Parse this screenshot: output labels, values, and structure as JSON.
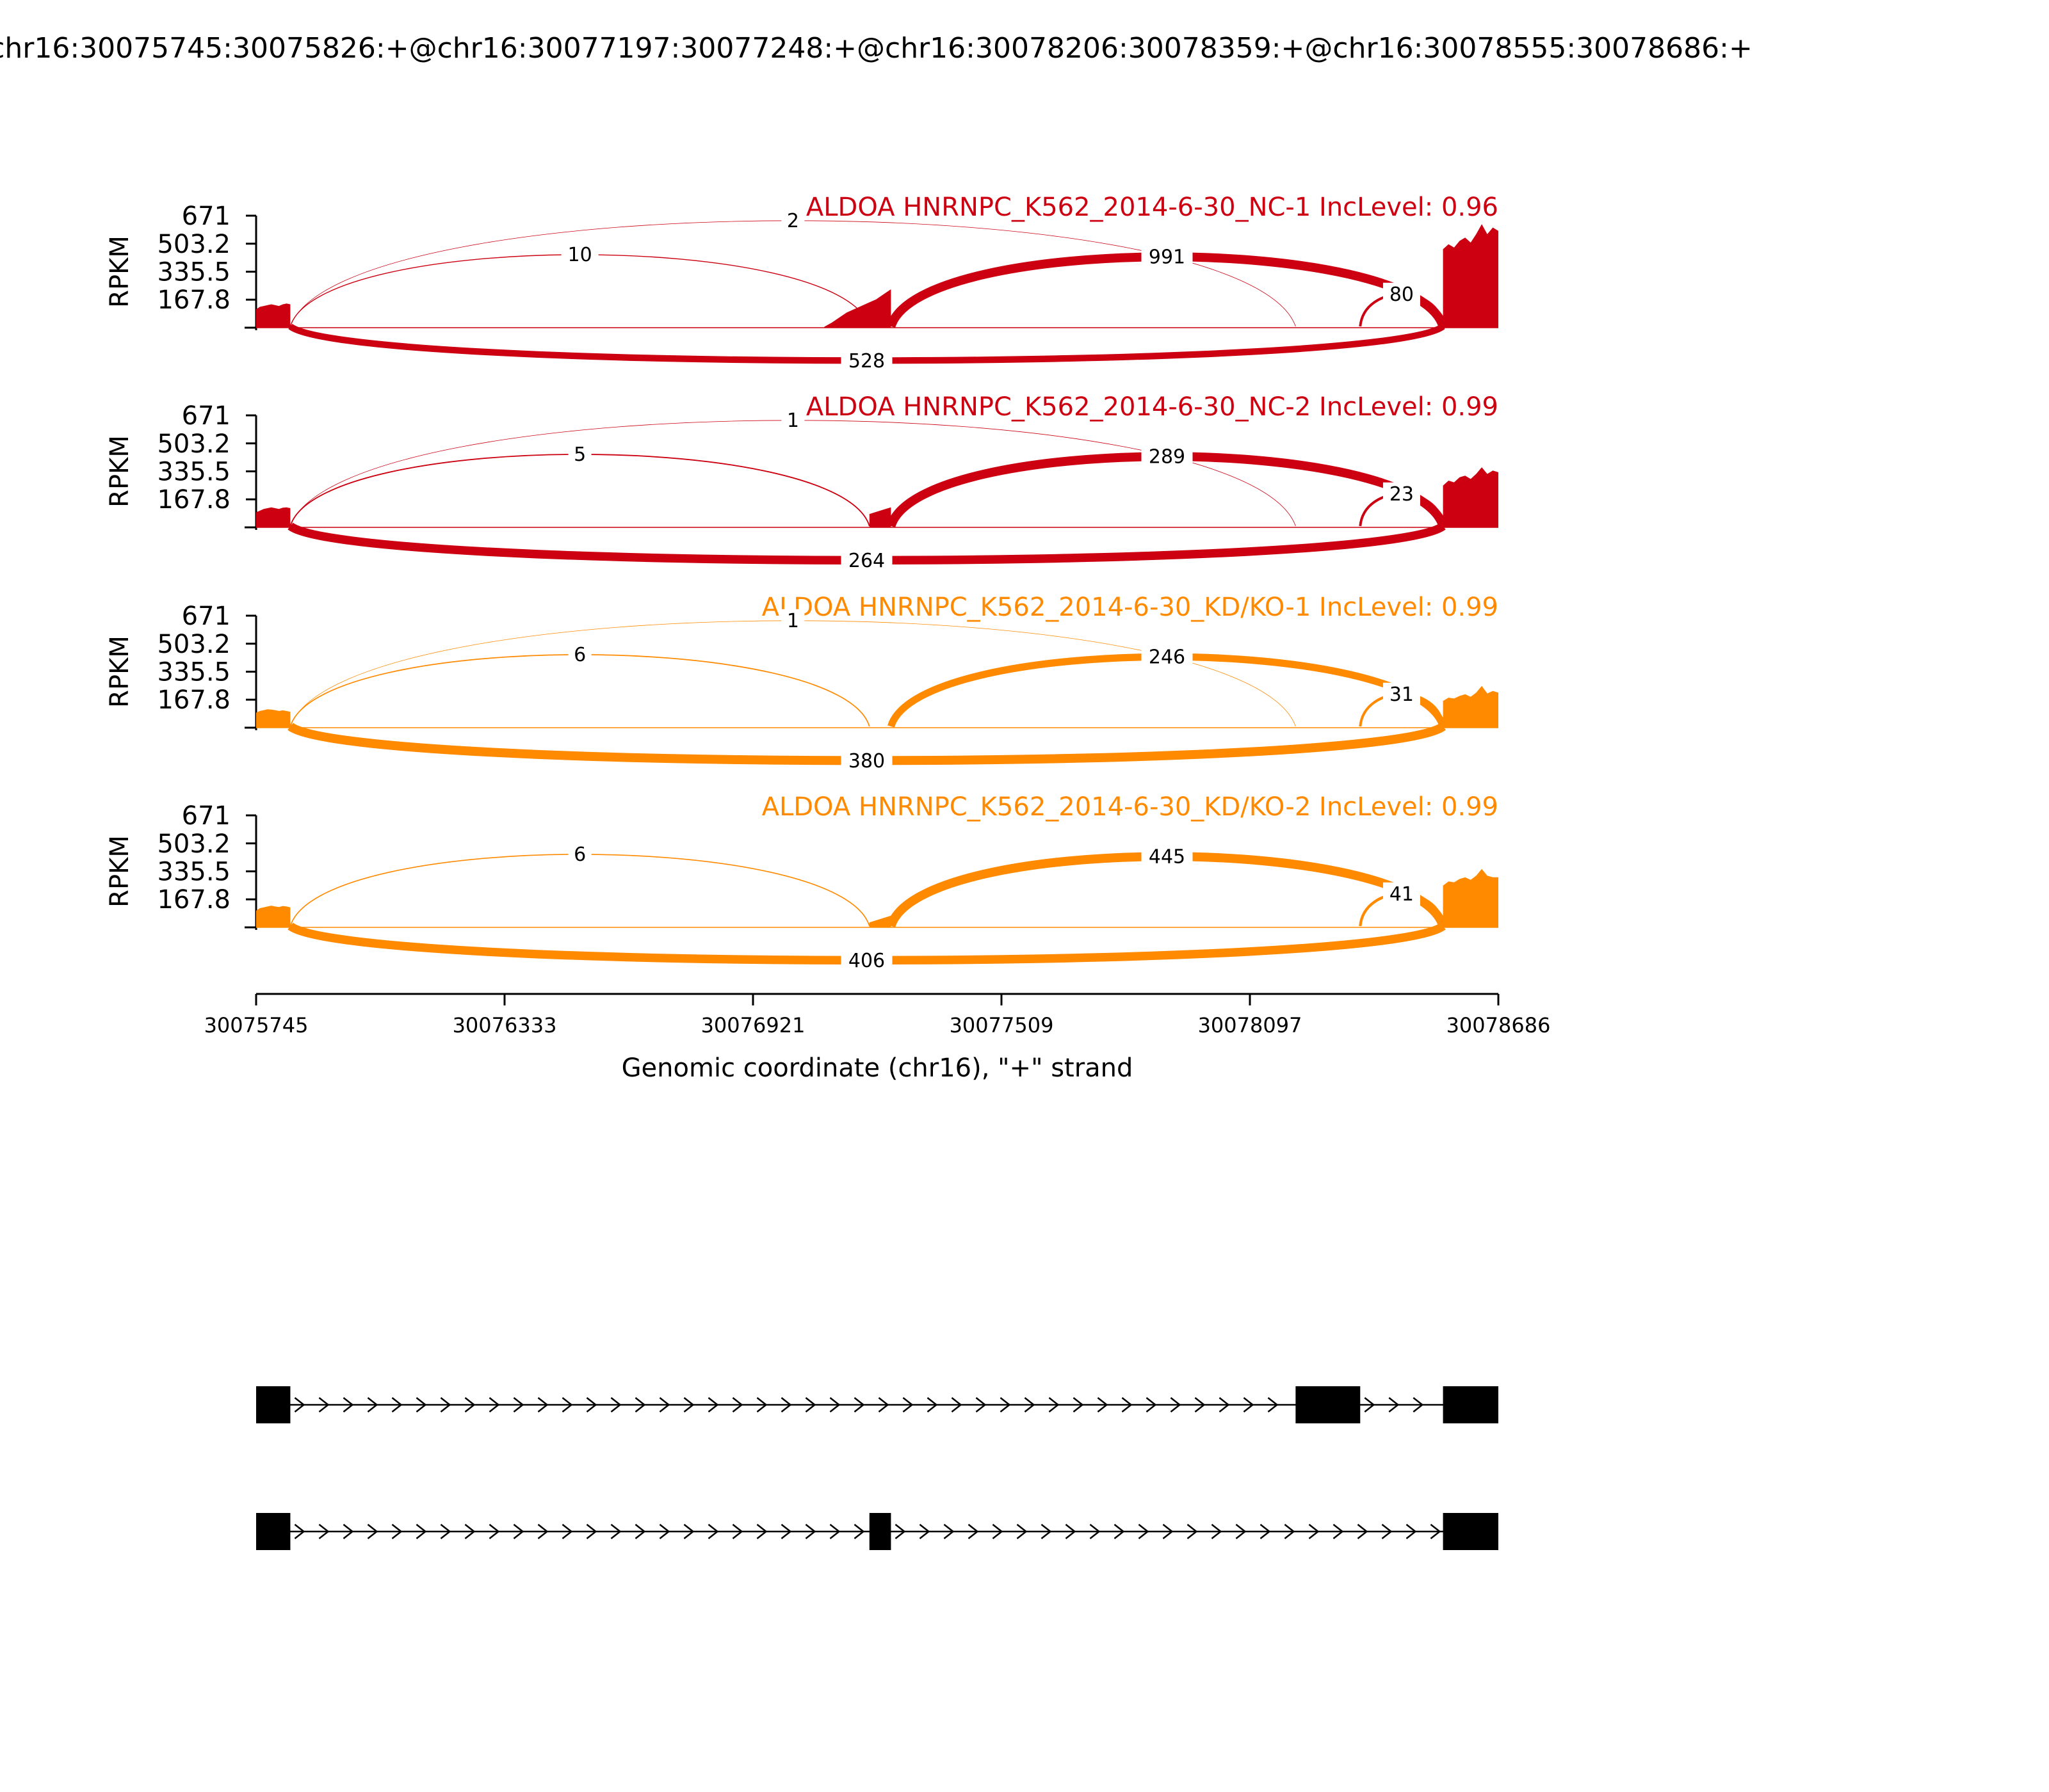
{
  "figure": {
    "title": "chr16:30075745:30075826:+@chr16:30077197:30077248:+@chr16:30078206:30078359:+@chr16:30078555:30078686:+",
    "ylabel": "RPKM",
    "xlabel": "Genomic coordinate (chr16), \"+\" strand",
    "yticks": [
      "671",
      "503.2",
      "335.5",
      "167.8"
    ],
    "xticks": [
      "30075745",
      "30076333",
      "30076921",
      "30077509",
      "30078097",
      "30078686"
    ]
  },
  "chart_data": {
    "type": "area",
    "chromosome": "chr16",
    "strand": "+",
    "ylabel": "RPKM",
    "xlabel": "Genomic coordinate (chr16), \"+\" strand",
    "xlim": [
      30075745,
      30078686
    ],
    "ylim": [
      0,
      671
    ],
    "yticks": [
      167.8,
      335.5,
      503.2,
      671
    ],
    "exons": [
      {
        "start": 30075745,
        "end": 30075826
      },
      {
        "start": 30077197,
        "end": 30077248
      },
      {
        "start": 30078206,
        "end": 30078359
      },
      {
        "start": 30078555,
        "end": 30078686
      }
    ],
    "series": [
      {
        "name": "ALDOA HNRNPC_K562_2014-6-30_NC-1 IncLevel: 0.96",
        "label": "ALDOA HNRNPC_K562_2014-6-30_NC-1 IncLevel: 0.96",
        "color": "#cc0011",
        "coverage": [
          {
            "start": 30075745,
            "end": 30075826,
            "values": [
              110,
              125,
              130,
              135,
              140,
              135,
              130,
              140,
              145,
              140
            ]
          },
          {
            "start": 30077090,
            "end": 30077248,
            "values": [
              5,
              30,
              60,
              90,
              110,
              130,
              150,
              170,
              200,
              230
            ]
          },
          {
            "start": 30078555,
            "end": 30078686,
            "values": [
              470,
              500,
              480,
              520,
              540,
              510,
              560,
              620,
              560,
              600,
              580
            ]
          }
        ],
        "junctions": [
          {
            "from": 30075826,
            "to": 30078206,
            "count": 2,
            "side": "above"
          },
          {
            "from": 30075826,
            "to": 30077197,
            "count": 10,
            "side": "above"
          },
          {
            "from": 30077248,
            "to": 30078555,
            "count": 991,
            "side": "above"
          },
          {
            "from": 30078359,
            "to": 30078555,
            "count": 80,
            "side": "above"
          },
          {
            "from": 30075826,
            "to": 30078555,
            "count": 528,
            "side": "below"
          }
        ]
      },
      {
        "name": "ALDOA HNRNPC_K562_2014-6-30_NC-2 IncLevel: 0.99",
        "label": "ALDOA HNRNPC_K562_2014-6-30_NC-2 IncLevel: 0.99",
        "color": "#cc0011",
        "coverage": [
          {
            "start": 30075745,
            "end": 30075826,
            "values": [
              90,
              100,
              110,
              115,
              120,
              115,
              110,
              118,
              120,
              115
            ]
          },
          {
            "start": 30077197,
            "end": 30077248,
            "values": [
              80,
              90,
              100,
              110,
              120
            ]
          },
          {
            "start": 30078555,
            "end": 30078686,
            "values": [
              250,
              280,
              270,
              300,
              310,
              290,
              320,
              360,
              320,
              340,
              330
            ]
          }
        ],
        "junctions": [
          {
            "from": 30075826,
            "to": 30078206,
            "count": 1,
            "side": "above"
          },
          {
            "from": 30075826,
            "to": 30077197,
            "count": 5,
            "side": "above"
          },
          {
            "from": 30077248,
            "to": 30078555,
            "count": 289,
            "side": "above"
          },
          {
            "from": 30078359,
            "to": 30078555,
            "count": 23,
            "side": "above"
          },
          {
            "from": 30075826,
            "to": 30078555,
            "count": 264,
            "side": "below"
          }
        ]
      },
      {
        "name": "ALDOA HNRNPC_K562_2014-6-30_KD/KO-1 IncLevel: 0.99",
        "label": "ALDOA HNRNPC_K562_2014-6-30_KD/KO-1 IncLevel: 0.99",
        "color": "#ff8a00",
        "coverage": [
          {
            "start": 30075745,
            "end": 30075826,
            "values": [
              90,
              100,
              105,
              110,
              108,
              105,
              100,
              104,
              100,
              95
            ]
          },
          {
            "start": 30078555,
            "end": 30078686,
            "values": [
              160,
              180,
              175,
              190,
              200,
              185,
              210,
              250,
              205,
              220,
              210
            ]
          }
        ],
        "junctions": [
          {
            "from": 30075826,
            "to": 30078206,
            "count": 1,
            "side": "above"
          },
          {
            "from": 30075826,
            "to": 30077197,
            "count": 6,
            "side": "above"
          },
          {
            "from": 30077248,
            "to": 30078555,
            "count": 246,
            "side": "above"
          },
          {
            "from": 30078359,
            "to": 30078555,
            "count": 31,
            "side": "above"
          },
          {
            "from": 30075826,
            "to": 30078555,
            "count": 380,
            "side": "below"
          }
        ]
      },
      {
        "name": "ALDOA HNRNPC_K562_2014-6-30_KD/KO-2 IncLevel: 0.99",
        "label": "ALDOA HNRNPC_K562_2014-6-30_KD/KO-2 IncLevel: 0.99",
        "color": "#ff8a00",
        "coverage": [
          {
            "start": 30075745,
            "end": 30075826,
            "values": [
              100,
              115,
              120,
              125,
              130,
              125,
              122,
              128,
              125,
              120
            ]
          },
          {
            "start": 30077197,
            "end": 30077248,
            "values": [
              30,
              40,
              50,
              60,
              70
            ]
          },
          {
            "start": 30078555,
            "end": 30078686,
            "values": [
              250,
              275,
              270,
              290,
              300,
              285,
              310,
              350,
              310,
              300,
              300
            ]
          }
        ],
        "junctions": [
          {
            "from": 30075826,
            "to": 30077197,
            "count": 6,
            "side": "above"
          },
          {
            "from": 30077248,
            "to": 30078555,
            "count": 445,
            "side": "above"
          },
          {
            "from": 30078359,
            "to": 30078555,
            "count": 41,
            "side": "above"
          },
          {
            "from": 30075826,
            "to": 30078555,
            "count": 406,
            "side": "below"
          }
        ]
      }
    ],
    "isoforms": [
      {
        "exons": [
          [
            30075745,
            30075826
          ],
          [
            30078206,
            30078359
          ],
          [
            30078555,
            30078686
          ]
        ]
      },
      {
        "exons": [
          [
            30075745,
            30075826
          ],
          [
            30077197,
            30077248
          ],
          [
            30078555,
            30078686
          ]
        ]
      }
    ]
  }
}
